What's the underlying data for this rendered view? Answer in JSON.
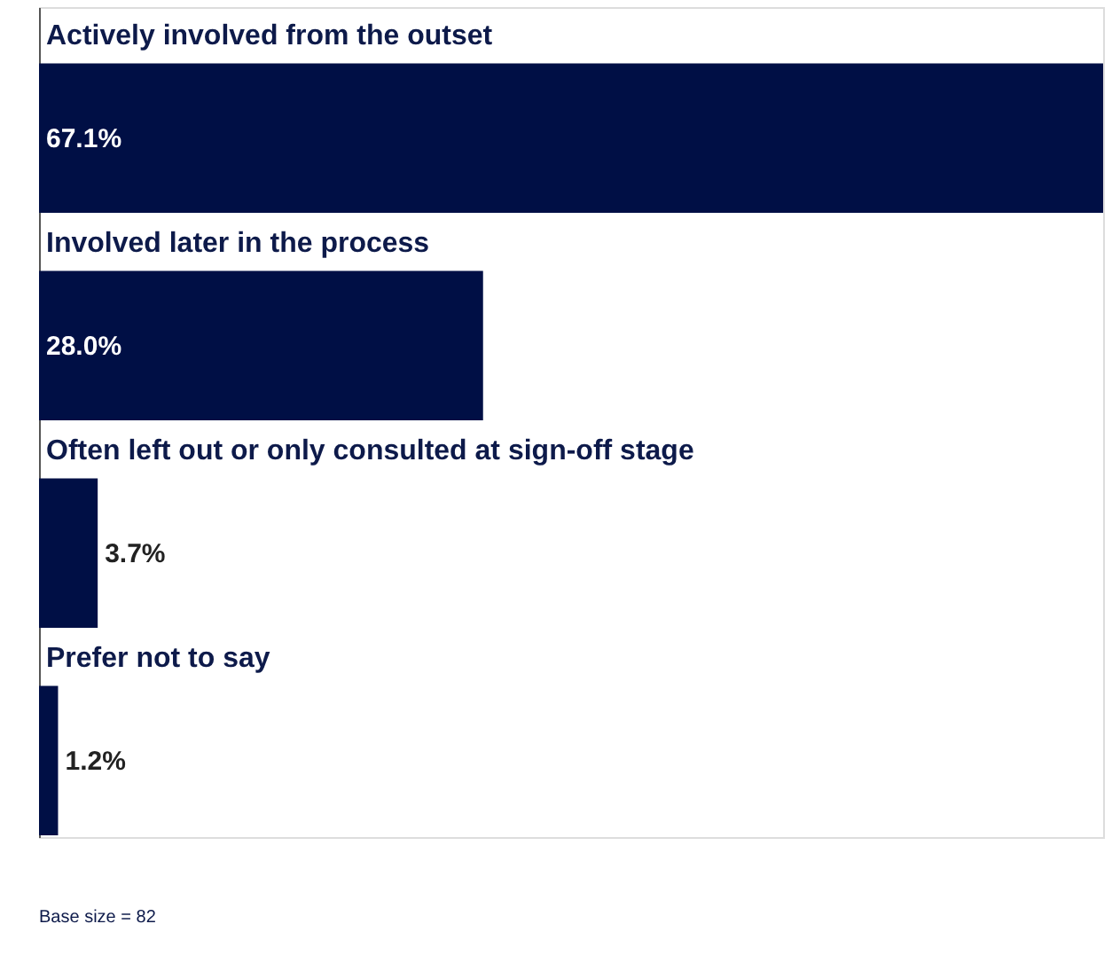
{
  "chart_data": {
    "type": "bar",
    "orientation": "horizontal",
    "categories": [
      "Actively involved from the outset",
      "Involved later in the process",
      "Often left out or only consulted at sign-off stage",
      "Prefer not to say"
    ],
    "values": [
      67.1,
      28.0,
      3.7,
      1.2
    ],
    "value_labels": [
      "67.1%",
      "28.0%",
      "3.7%",
      "1.2%"
    ],
    "color": "#000f45",
    "xlim": [
      0,
      67.1
    ],
    "tick_labels": false,
    "annotations": [
      "Base size = 82"
    ]
  }
}
